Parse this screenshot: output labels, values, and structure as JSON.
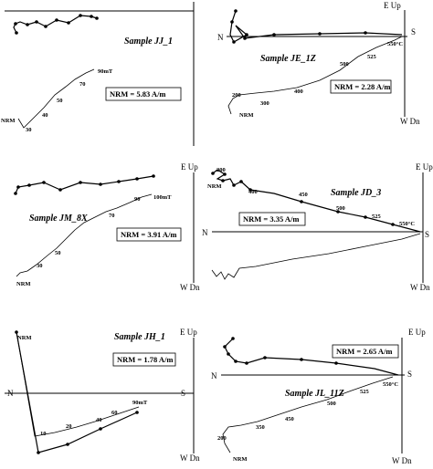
{
  "figure_type": "Zijderveld orthogonal demagnetization diagrams",
  "panels": [
    {
      "id": "jj1",
      "title": "Sample JJ_1",
      "axis_labels": {
        "top": "",
        "bottom": "",
        "left": "",
        "right": ""
      },
      "nrm_intensity": "NRM = 5.83 A/m",
      "vertical_steps": [
        "NRM",
        "30",
        "40",
        "50",
        "70",
        "90mT"
      ]
    },
    {
      "id": "je1z",
      "title": "Sample JE_1Z",
      "axis_labels": {
        "top": "E Up",
        "bottom": "W Dn",
        "left": "N",
        "right": "S"
      },
      "nrm_intensity": "NRM = 2.28 A/m",
      "vertical_steps": [
        "NRM",
        "200",
        "300",
        "400",
        "500",
        "525",
        "550°C"
      ]
    },
    {
      "id": "jm8x",
      "title": "Sample JM_8X",
      "axis_labels": {
        "top": "E Up",
        "bottom": "W Dn",
        "left": "",
        "right": ""
      },
      "nrm_intensity": "NRM = 3.91 A/m",
      "vertical_steps": [
        "NRM",
        "30",
        "50",
        "70",
        "90",
        "100mT"
      ]
    },
    {
      "id": "jd3",
      "title": "Sample JD_3",
      "axis_labels": {
        "top": "E Up",
        "bottom": "W Dn",
        "left": "N",
        "right": "S"
      },
      "nrm_intensity": "NRM = 3.35 A/m",
      "horizontal_steps": [
        "NRM",
        "200",
        "400",
        "450",
        "500",
        "525",
        "550°C"
      ]
    },
    {
      "id": "jh1",
      "title": "Sample JH_1",
      "axis_labels": {
        "top": "E Up",
        "bottom": "W Dn",
        "left": "N",
        "right": "S"
      },
      "nrm_intensity": "NRM = 1.78 A/m",
      "vertical_steps": [
        "NRM",
        "10",
        "20",
        "40",
        "60",
        "90mT"
      ]
    },
    {
      "id": "jl11z",
      "title": "Sample JL_11Z",
      "axis_labels": {
        "top": "E Up",
        "bottom": "W Dn",
        "left": "N",
        "right": "S"
      },
      "nrm_intensity": "NRM = 2.65 A/m",
      "vertical_steps": [
        "NRM",
        "200",
        "350",
        "450",
        "500",
        "525",
        "550°C"
      ]
    }
  ]
}
